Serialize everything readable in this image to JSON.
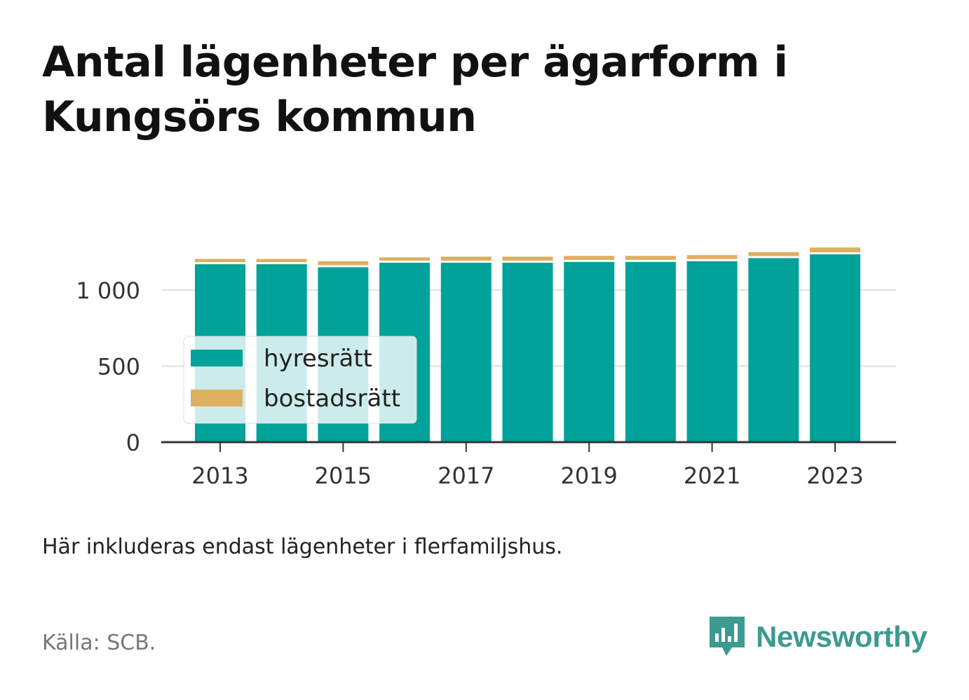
{
  "title": "Antal lägenheter per ägarform i Kungsörs kommun",
  "note": "Här inkluderas endast lägenheter i flerfamiljshus.",
  "source": "Källa: SCB.",
  "brand": {
    "name": "Newsworthy",
    "logo_icon": "newsworthy-logo-icon",
    "color": "#3d9a90"
  },
  "chart_data": {
    "type": "bar",
    "stacked": true,
    "categories": [
      2013,
      2014,
      2015,
      2016,
      2017,
      2018,
      2019,
      2020,
      2021,
      2022,
      2023
    ],
    "x_ticks": [
      "2013",
      "2015",
      "2017",
      "2019",
      "2021",
      "2023"
    ],
    "y_ticks": [
      {
        "value": 0,
        "label": "0"
      },
      {
        "value": 500,
        "label": "500"
      },
      {
        "value": 1000,
        "label": "1 000"
      }
    ],
    "ylim": [
      0,
      1300
    ],
    "grid": "horizontal",
    "legend_position": "inside-left",
    "series": [
      {
        "name": "hyresrätt",
        "color": "#00a299",
        "values": [
          1170,
          1170,
          1150,
          1180,
          1180,
          1180,
          1185,
          1185,
          1190,
          1210,
          1235
        ]
      },
      {
        "name": "bostadsrätt",
        "color": "#dcb05f",
        "values": [
          35,
          35,
          40,
          35,
          40,
          40,
          40,
          40,
          40,
          40,
          45
        ]
      }
    ]
  }
}
